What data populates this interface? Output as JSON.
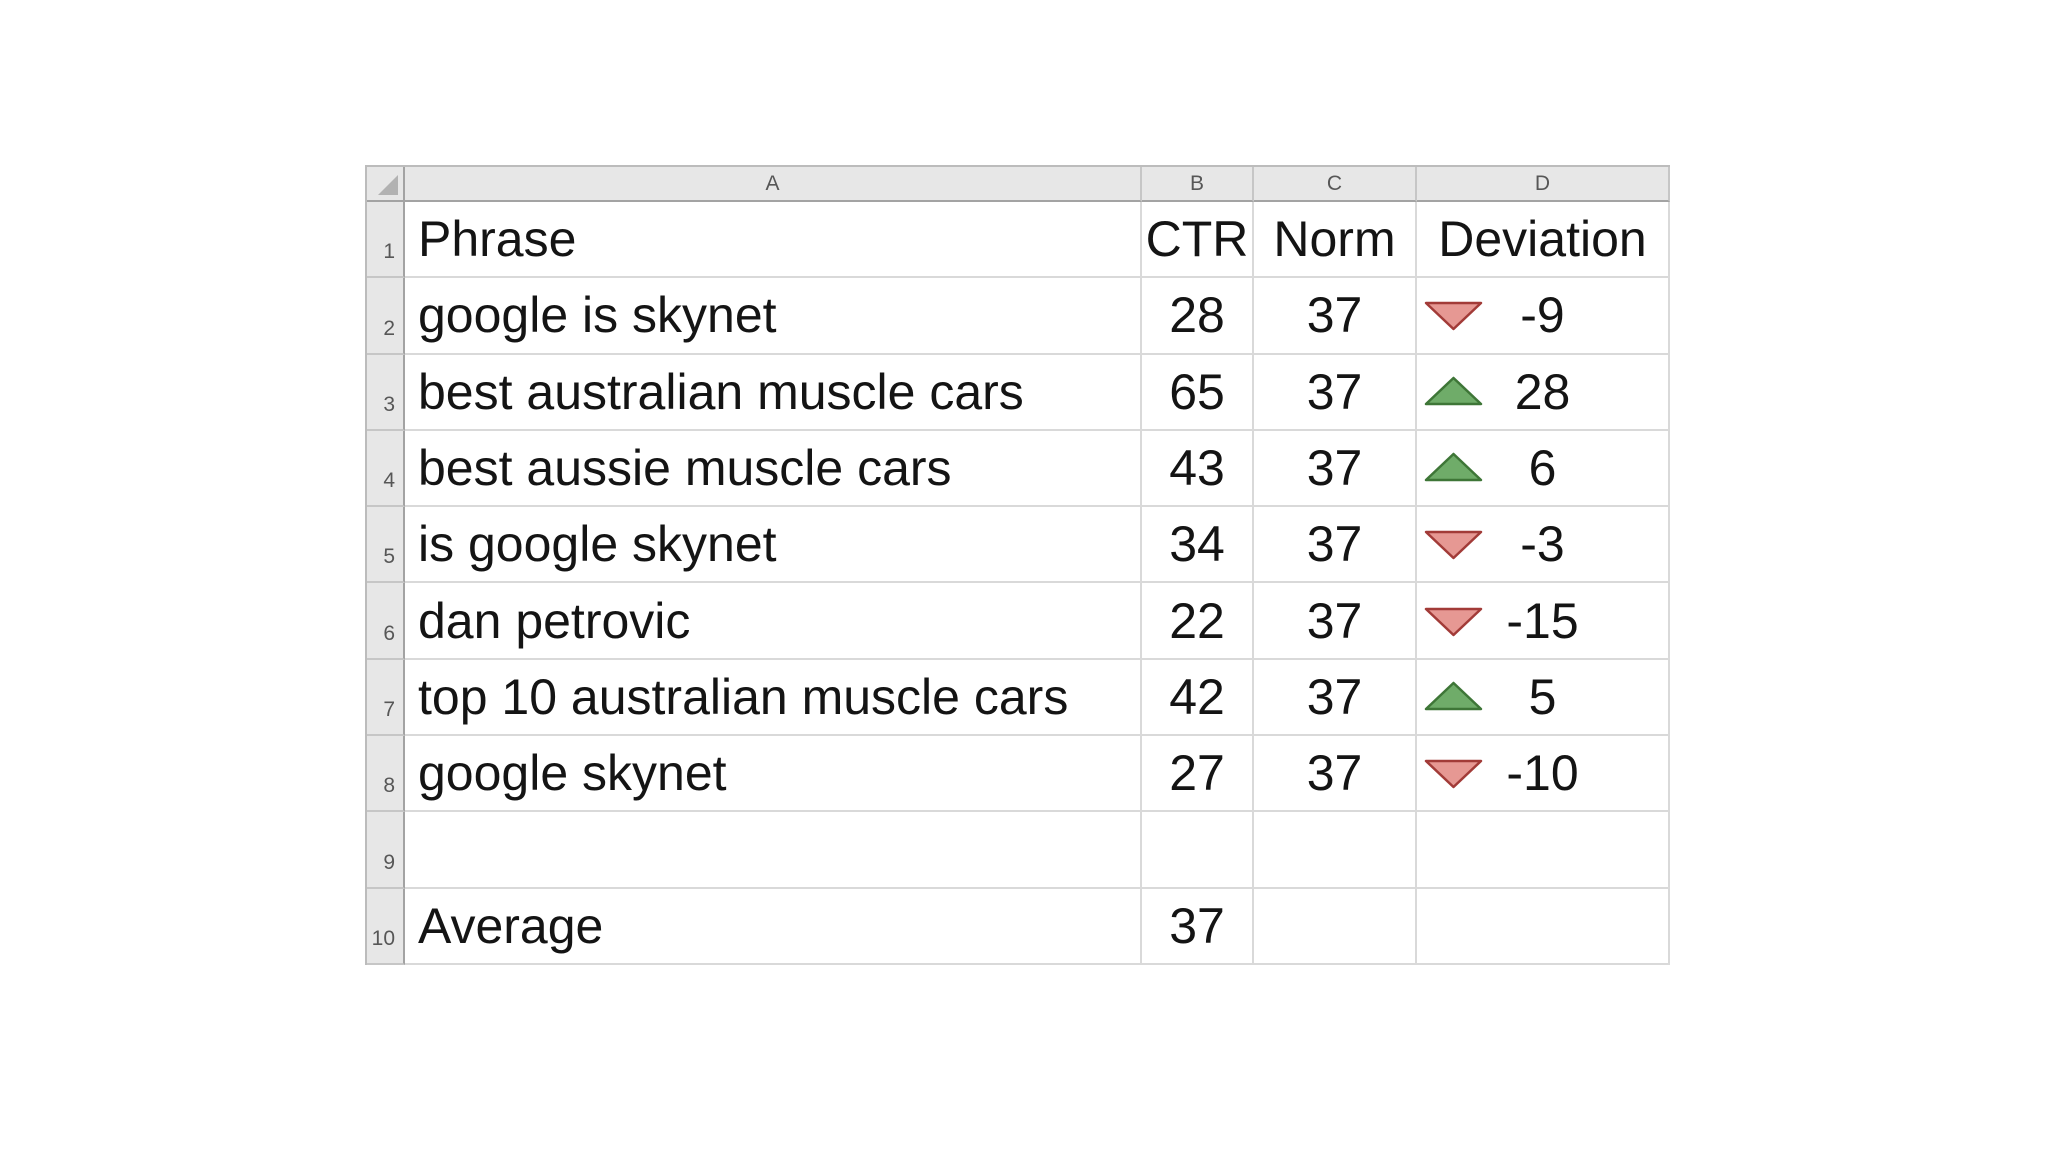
{
  "sheet": {
    "column_headers": [
      "A",
      "B",
      "C",
      "D"
    ],
    "colors": {
      "header_bg": "#e7e7e7",
      "grid_line": "#d9d9d9",
      "header_border": "#a3a3a3",
      "up_fill": "#6FAC69",
      "up_stroke": "#3E7637",
      "down_fill": "#E69893",
      "down_stroke": "#A23B38"
    },
    "rows": [
      {
        "row_number": "1",
        "phrase": "Phrase",
        "ctr": "CTR",
        "norm": "Norm",
        "deviation": "Deviation",
        "trend": "none"
      },
      {
        "row_number": "2",
        "phrase": "google is skynet",
        "ctr": "28",
        "norm": "37",
        "deviation": "-9",
        "trend": "down"
      },
      {
        "row_number": "3",
        "phrase": "best australian muscle cars",
        "ctr": "65",
        "norm": "37",
        "deviation": "28",
        "trend": "up"
      },
      {
        "row_number": "4",
        "phrase": "best aussie muscle cars",
        "ctr": "43",
        "norm": "37",
        "deviation": "6",
        "trend": "up"
      },
      {
        "row_number": "5",
        "phrase": "is google skynet",
        "ctr": "34",
        "norm": "37",
        "deviation": "-3",
        "trend": "down"
      },
      {
        "row_number": "6",
        "phrase": "dan petrovic",
        "ctr": "22",
        "norm": "37",
        "deviation": "-15",
        "trend": "down"
      },
      {
        "row_number": "7",
        "phrase": "top 10 australian muscle cars",
        "ctr": "42",
        "norm": "37",
        "deviation": "5",
        "trend": "up"
      },
      {
        "row_number": "8",
        "phrase": "google skynet",
        "ctr": "27",
        "norm": "37",
        "deviation": "-10",
        "trend": "down"
      },
      {
        "row_number": "9",
        "phrase": "",
        "ctr": "",
        "norm": "",
        "deviation": "",
        "trend": "none"
      },
      {
        "row_number": "10",
        "phrase": "Average",
        "ctr": "37",
        "norm": "",
        "deviation": "",
        "trend": "none"
      }
    ]
  }
}
